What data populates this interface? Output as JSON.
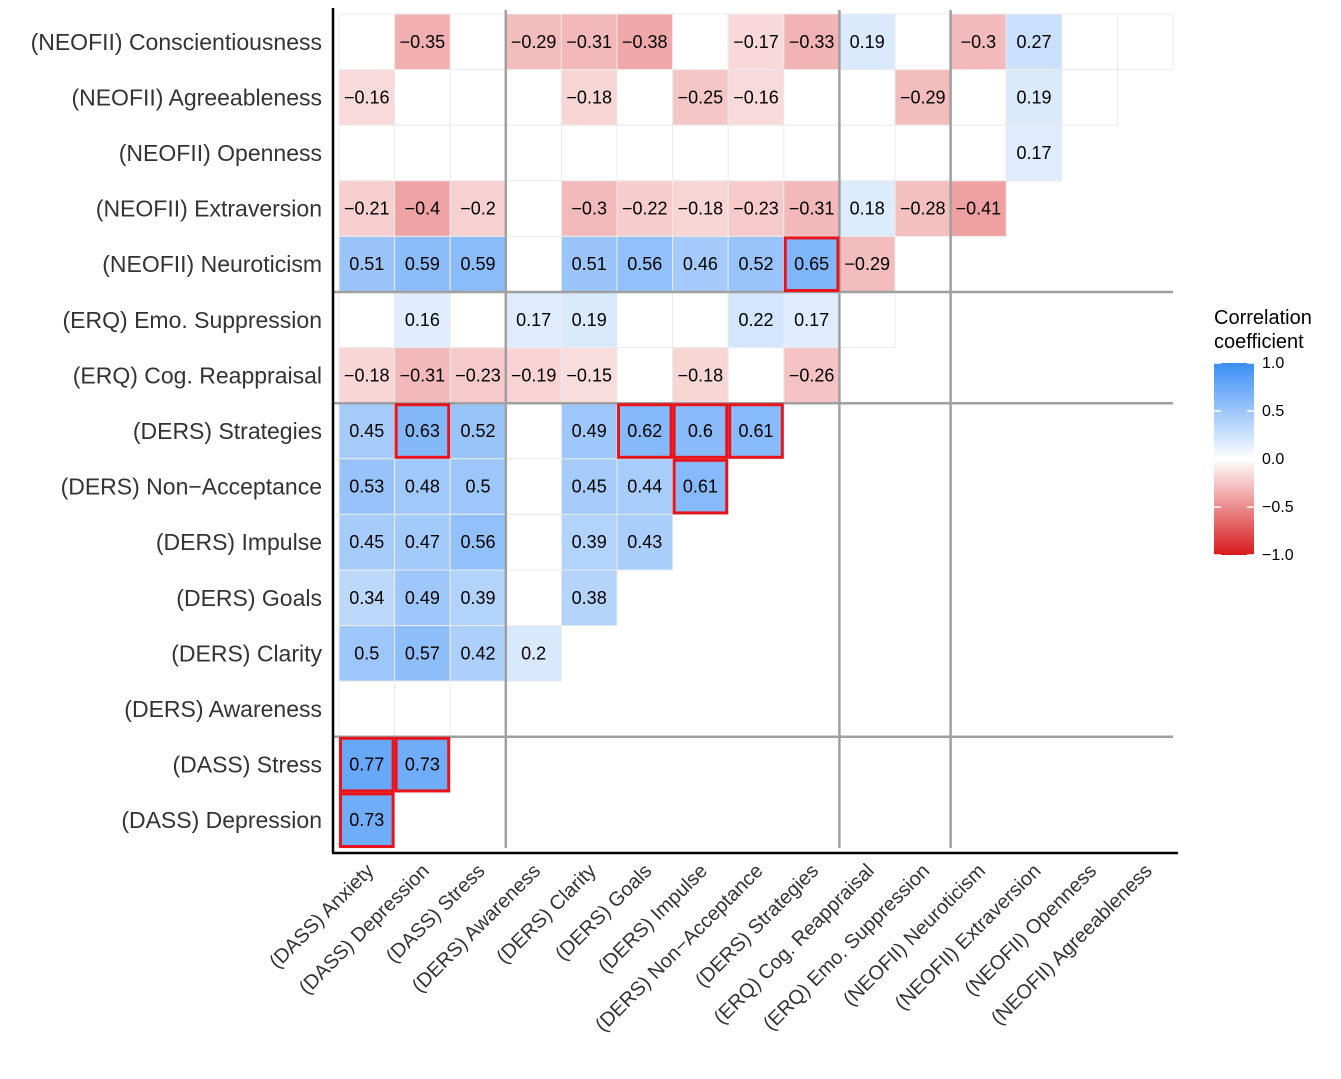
{
  "chart_data": {
    "type": "heatmap",
    "title": "",
    "xlabel": "",
    "ylabel": "",
    "x_categories": [
      "(DASS) Anxiety",
      "(DASS) Depression",
      "(DASS) Stress",
      "(DERS) Awareness",
      "(DERS) Clarity",
      "(DERS) Goals",
      "(DERS) Impulse",
      "(DERS) Non−Acceptance",
      "(DERS) Strategies",
      "(ERQ) Cog. Reappraisal",
      "(ERQ) Emo. Suppression",
      "(NEOFII) Neuroticism",
      "(NEOFII) Extraversion",
      "(NEOFII) Openness",
      "(NEOFII) Agreeableness"
    ],
    "y_categories": [
      "(NEOFII) Conscientiousness",
      "(NEOFII) Agreeableness",
      "(NEOFII) Openness",
      "(NEOFII) Extraversion",
      "(NEOFII) Neuroticism",
      "(ERQ) Emo. Suppression",
      "(ERQ) Cog. Reappraisal",
      "(DERS) Strategies",
      "(DERS) Non−Acceptance",
      "(DERS) Impulse",
      "(DERS) Goals",
      "(DERS) Clarity",
      "(DERS) Awareness",
      "(DASS) Stress",
      "(DASS) Depression"
    ],
    "values": [
      [
        null,
        -0.35,
        null,
        -0.29,
        -0.31,
        -0.38,
        null,
        -0.17,
        -0.33,
        0.19,
        null,
        -0.3,
        0.27,
        null,
        null
      ],
      [
        -0.16,
        null,
        null,
        null,
        -0.18,
        null,
        -0.25,
        -0.16,
        null,
        null,
        -0.29,
        null,
        0.19,
        null
      ],
      [
        null,
        null,
        null,
        null,
        null,
        null,
        null,
        null,
        null,
        null,
        null,
        null,
        0.17
      ],
      [
        -0.21,
        -0.4,
        -0.2,
        null,
        -0.3,
        -0.22,
        -0.18,
        -0.23,
        -0.31,
        0.18,
        -0.28,
        -0.41
      ],
      [
        0.51,
        0.59,
        0.59,
        null,
        0.51,
        0.56,
        0.46,
        0.52,
        0.65,
        -0.29,
        null
      ],
      [
        null,
        0.16,
        null,
        0.17,
        0.19,
        null,
        null,
        0.22,
        0.17,
        null
      ],
      [
        -0.18,
        -0.31,
        -0.23,
        -0.19,
        -0.15,
        null,
        -0.18,
        null,
        -0.26
      ],
      [
        0.45,
        0.63,
        0.52,
        null,
        0.49,
        0.62,
        0.6,
        0.61
      ],
      [
        0.53,
        0.48,
        0.5,
        null,
        0.45,
        0.44,
        0.61
      ],
      [
        0.45,
        0.47,
        0.56,
        null,
        0.39,
        0.43
      ],
      [
        0.34,
        0.49,
        0.39,
        null,
        0.38
      ],
      [
        0.5,
        0.57,
        0.42,
        0.2
      ],
      [
        null,
        null,
        null
      ],
      [
        0.77,
        0.73
      ],
      [
        0.73
      ]
    ],
    "value_labels": [
      [
        "",
        "−0.35",
        "",
        "−0.29",
        "−0.31",
        "−0.38",
        "",
        "−0.17",
        "−0.33",
        "0.19",
        "",
        "−0.3",
        "0.27",
        "",
        ""
      ],
      [
        "−0.16",
        "",
        "",
        "",
        "−0.18",
        "",
        "−0.25",
        "−0.16",
        "",
        "",
        "−0.29",
        "",
        "0.19",
        ""
      ],
      [
        "",
        "",
        "",
        "",
        "",
        "",
        "",
        "",
        "",
        "",
        "",
        "",
        "0.17"
      ],
      [
        "−0.21",
        "−0.4",
        "−0.2",
        "",
        "−0.3",
        "−0.22",
        "−0.18",
        "−0.23",
        "−0.31",
        "0.18",
        "−0.28",
        "−0.41"
      ],
      [
        "0.51",
        "0.59",
        "0.59",
        "",
        "0.51",
        "0.56",
        "0.46",
        "0.52",
        "0.65",
        "−0.29",
        ""
      ],
      [
        "",
        "0.16",
        "",
        "0.17",
        "0.19",
        "",
        "",
        "0.22",
        "0.17",
        ""
      ],
      [
        "−0.18",
        "−0.31",
        "−0.23",
        "−0.19",
        "−0.15",
        "",
        "−0.18",
        "",
        "−0.26"
      ],
      [
        "0.45",
        "0.63",
        "0.52",
        "",
        "0.49",
        "0.62",
        "0.6",
        "0.61"
      ],
      [
        "0.53",
        "0.48",
        "0.5",
        "",
        "0.45",
        "0.44",
        "0.61"
      ],
      [
        "0.45",
        "0.47",
        "0.56",
        "",
        "0.39",
        "0.43"
      ],
      [
        "0.34",
        "0.49",
        "0.39",
        "",
        "0.38"
      ],
      [
        "0.5",
        "0.57",
        "0.42",
        "0.2"
      ],
      [
        "",
        "",
        ""
      ],
      [
        "0.77",
        "0.73"
      ],
      [
        "0.73"
      ]
    ],
    "highlighted_cells": [
      [
        4,
        8
      ],
      [
        7,
        1
      ],
      [
        7,
        5
      ],
      [
        7,
        6
      ],
      [
        7,
        7
      ],
      [
        8,
        6
      ],
      [
        13,
        0
      ],
      [
        13,
        1
      ],
      [
        14,
        0
      ]
    ],
    "group_separators": {
      "after_x_index": [
        2,
        8,
        10
      ],
      "after_y_index": [
        4,
        6,
        12
      ]
    },
    "colorscale": {
      "min": -1.0,
      "max": 1.0,
      "low_color": "#d7191c",
      "mid_color": "#ffffff",
      "high_color": "#3a8ef6",
      "highlight_color": "#e8141b",
      "separator_color": "#a0a0a0",
      "ticks": [
        "1.0",
        "0.5",
        "0.0",
        "−0.5",
        "−1.0"
      ]
    },
    "legend": {
      "title_line1": "Correlation",
      "title_line2": "coefficient",
      "position": "right"
    }
  }
}
